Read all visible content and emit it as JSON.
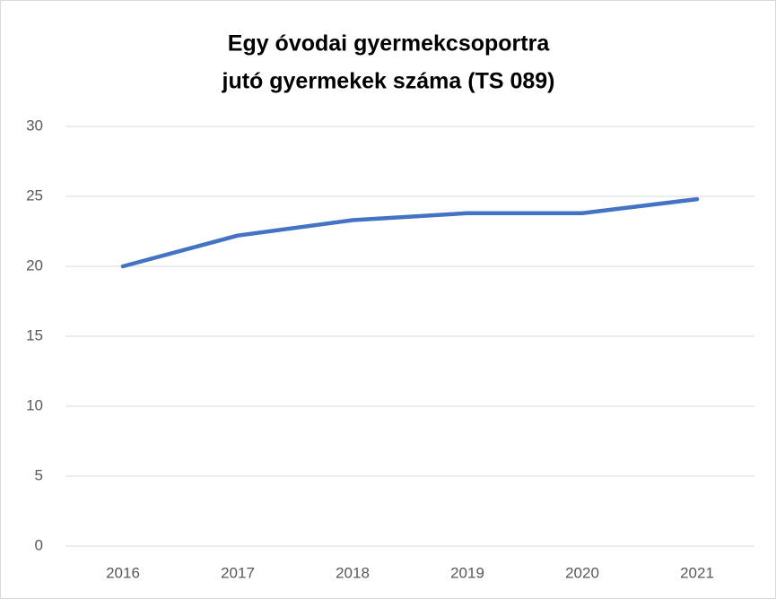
{
  "chart_data": {
    "type": "line",
    "title": [
      "Egy óvodai gyermekcsoportra",
      "jutó gyermekek száma (TS 089)"
    ],
    "categories": [
      "2016",
      "2017",
      "2018",
      "2019",
      "2020",
      "2021"
    ],
    "series": [
      {
        "name": "Egy óvodai gyermekcsoportra jutó gyermekek száma",
        "color": "#4472c4",
        "values": [
          20.0,
          22.2,
          23.3,
          23.8,
          23.8,
          24.8
        ]
      }
    ],
    "ylim": [
      0,
      30
    ],
    "yticks": [
      0,
      5,
      10,
      15,
      20,
      25,
      30
    ],
    "grid": true
  }
}
